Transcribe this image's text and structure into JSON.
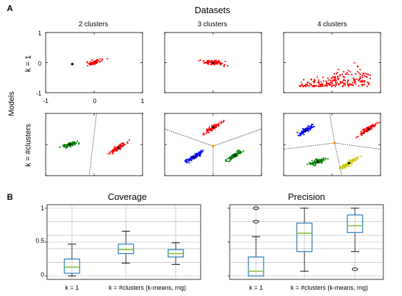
{
  "panel_a": {
    "letter": "A",
    "title": "Datasets",
    "column_titles": [
      "2 clusters",
      "3 clusters",
      "4 clusters"
    ],
    "row_labels": [
      "k = 1",
      "k = #clusters"
    ],
    "models_label": "Models",
    "y_ticks": [
      "1",
      "0",
      "-1"
    ],
    "x_ticks": [
      "-1",
      "0",
      "1"
    ]
  },
  "panel_b": {
    "letter": "B",
    "y_ticks": [
      "1",
      "0.5",
      "0"
    ]
  },
  "colors": {
    "cluster_red": "#ff0000",
    "cluster_green": "#008000",
    "cluster_blue": "#0000ff",
    "cluster_yellow": "#c8c800",
    "center_orange": "#ff8c00",
    "box_blue": "#1f77b4",
    "median_green": "#77b82a",
    "grid_gray": "#b0b0b0"
  },
  "chart_data": [
    {
      "type": "scatter",
      "title": "Datasets",
      "panels": [
        {
          "column": "2 clusters",
          "row": "k = 1",
          "clusters": [
            {
              "color": "red",
              "center": [
                0.0,
                0.0
              ]
            }
          ],
          "centers": [
            [
              -0.45,
              -0.05
            ]
          ]
        },
        {
          "column": "3 clusters",
          "row": "k = 1",
          "clusters": [
            {
              "color": "red",
              "center": [
                0.0,
                0.0
              ]
            }
          ]
        },
        {
          "column": "4 clusters",
          "row": "k = 1",
          "clusters": [
            {
              "color": "red",
              "center": [
                0.0,
                -0.8
              ]
            }
          ]
        },
        {
          "column": "2 clusters",
          "row": "k = #clusters",
          "clusters": [
            {
              "color": "green",
              "center": [
                -0.5,
                0.0
              ]
            },
            {
              "color": "red",
              "center": [
                0.5,
                -0.1
              ]
            }
          ],
          "boundary": "dotted line"
        },
        {
          "column": "3 clusters",
          "row": "k = #clusters",
          "clusters": [
            {
              "color": "red",
              "center": [
                0.0,
                0.55
              ]
            },
            {
              "color": "blue",
              "center": [
                -0.4,
                -0.4
              ]
            },
            {
              "color": "green",
              "center": [
                0.45,
                -0.35
              ]
            }
          ],
          "boundary": "voronoi"
        },
        {
          "column": "4 clusters",
          "row": "k = #clusters",
          "clusters": [
            {
              "color": "blue",
              "center": [
                -0.55,
                0.45
              ]
            },
            {
              "color": "red",
              "center": [
                0.75,
                0.5
              ]
            },
            {
              "color": "green",
              "center": [
                -0.3,
                -0.55
              ]
            },
            {
              "color": "yellow",
              "center": [
                0.35,
                -0.6
              ]
            }
          ],
          "boundary": "voronoi"
        }
      ],
      "ylim": [
        -1,
        1
      ],
      "xlim": [
        -1,
        1
      ]
    },
    {
      "type": "box",
      "title": "Coverage",
      "categories": [
        "k = 1",
        "k = #clusters (k-means, rng)"
      ],
      "ylim": [
        0,
        1
      ],
      "boxes": [
        {
          "min": 0.0,
          "q1": 0.04,
          "median": 0.13,
          "q3": 0.25,
          "max": 0.47,
          "outliers": []
        },
        {
          "min": 0.19,
          "q1": 0.33,
          "median": 0.39,
          "q3": 0.47,
          "max": 0.66,
          "outliers": []
        },
        {
          "min": 0.17,
          "q1": 0.28,
          "median": 0.33,
          "q3": 0.39,
          "max": 0.49,
          "outliers": []
        }
      ]
    },
    {
      "type": "box",
      "title": "Precision",
      "categories": [
        "k = 1",
        "k = #clusters (k-means, rng)"
      ],
      "ylim": [
        0,
        1
      ],
      "boxes": [
        {
          "min": 0.0,
          "q1": 0.0,
          "median": 0.07,
          "q3": 0.28,
          "max": 0.58,
          "outliers": [
            0.8,
            1.0
          ]
        },
        {
          "min": 0.07,
          "q1": 0.36,
          "median": 0.63,
          "q3": 0.78,
          "max": 1.0,
          "outliers": []
        },
        {
          "min": 0.36,
          "q1": 0.64,
          "median": 0.74,
          "q3": 0.9,
          "max": 1.0,
          "outliers": [
            0.1
          ]
        }
      ]
    }
  ]
}
